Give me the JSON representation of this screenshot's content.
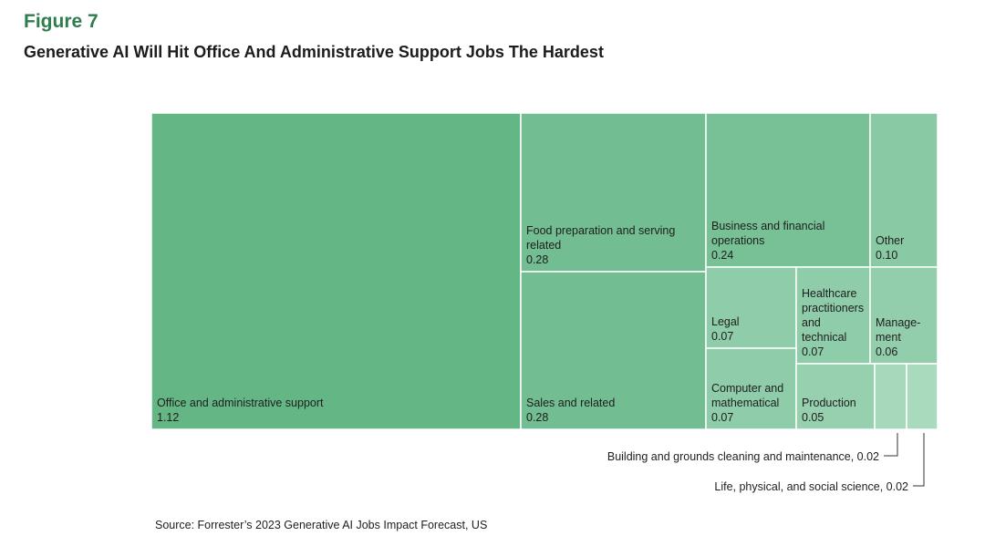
{
  "figure": {
    "label": "Figure 7",
    "title": "Generative AI Will Hit Office And Administrative Support Jobs The Hardest",
    "source": "Source: Forrester’s 2023 Generative AI Jobs Impact Forecast, US"
  },
  "chart_data": {
    "type": "treemap",
    "title": "Generative AI Will Hit Office And Administrative Support Jobs The Hardest",
    "items": [
      {
        "key": "office",
        "label_lines": [
          "Office and administrative support"
        ],
        "value": 1.12,
        "value_label": "1.12",
        "color": "#64b684"
      },
      {
        "key": "food",
        "label_lines": [
          "Food preparation and serving",
          "related"
        ],
        "value": 0.28,
        "value_label": "0.28",
        "color": "#72bd91"
      },
      {
        "key": "sales",
        "label_lines": [
          "Sales and related"
        ],
        "value": 0.28,
        "value_label": "0.28",
        "color": "#72bd91"
      },
      {
        "key": "business",
        "label_lines": [
          "Business and financial",
          "operations"
        ],
        "value": 0.24,
        "value_label": "0.24",
        "color": "#78c196"
      },
      {
        "key": "other",
        "label_lines": [
          "Other"
        ],
        "value": 0.1,
        "value_label": "0.10",
        "color": "#89c9a4"
      },
      {
        "key": "legal",
        "label_lines": [
          "Legal"
        ],
        "value": 0.07,
        "value_label": "0.07",
        "color": "#8fcca9"
      },
      {
        "key": "healthcare",
        "label_lines": [
          "Healthcare",
          "practitioners",
          "and",
          "technical"
        ],
        "value": 0.07,
        "value_label": "0.07",
        "color": "#8fcca9"
      },
      {
        "key": "management",
        "label_lines": [
          "Manage-",
          "ment"
        ],
        "value": 0.06,
        "value_label": "0.06",
        "color": "#93ceac"
      },
      {
        "key": "computer",
        "label_lines": [
          "Computer and",
          "mathematical"
        ],
        "value": 0.07,
        "value_label": "0.07",
        "color": "#8fcca9"
      },
      {
        "key": "production",
        "label_lines": [
          "Production"
        ],
        "value": 0.05,
        "value_label": "0.05",
        "color": "#97d0af"
      },
      {
        "key": "building",
        "label_lines": [],
        "value": 0.02,
        "value_label": "0.02",
        "color": "#a6d8bb"
      },
      {
        "key": "life",
        "label_lines": [],
        "value": 0.02,
        "value_label": "0.02",
        "color": "#aadabe"
      }
    ],
    "annotations": [
      {
        "target": "building",
        "text": "Building and grounds cleaning and maintenance, 0.02"
      },
      {
        "target": "life",
        "text": "Life, physical, and social science, 0.02"
      }
    ]
  }
}
